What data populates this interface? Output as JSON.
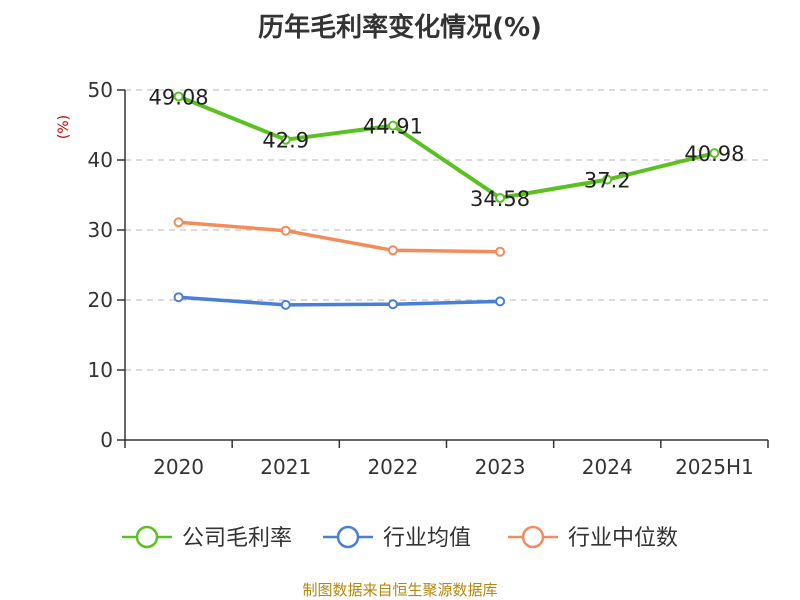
{
  "chart_data": {
    "type": "line",
    "title": "历年毛利率变化情况(%)",
    "ylabel": "(%)",
    "xlabel": "",
    "categories": [
      "2020",
      "2021",
      "2022",
      "2023",
      "2024",
      "2025H1"
    ],
    "ylim": [
      0,
      50
    ],
    "yticks": [
      "0",
      "10",
      "20",
      "30",
      "40",
      "50"
    ],
    "grid": true,
    "legend_position": "bottom",
    "series": [
      {
        "name": "公司毛利率",
        "color": "#5bc121",
        "values": [
          49.08,
          42.9,
          44.91,
          34.58,
          37.2,
          40.98
        ],
        "labels": [
          "49.08",
          "42.9",
          "44.91",
          "34.58",
          "37.2",
          "40.98"
        ]
      },
      {
        "name": "行业均值",
        "color": "#4a7fd8",
        "values": [
          20.4,
          19.3,
          19.4,
          19.8,
          null,
          null
        ]
      },
      {
        "name": "行业中位数",
        "color": "#f28c5a",
        "values": [
          31.1,
          29.9,
          27.1,
          26.9,
          null,
          null
        ]
      }
    ],
    "source": "制图数据来自恒生聚源数据库"
  }
}
